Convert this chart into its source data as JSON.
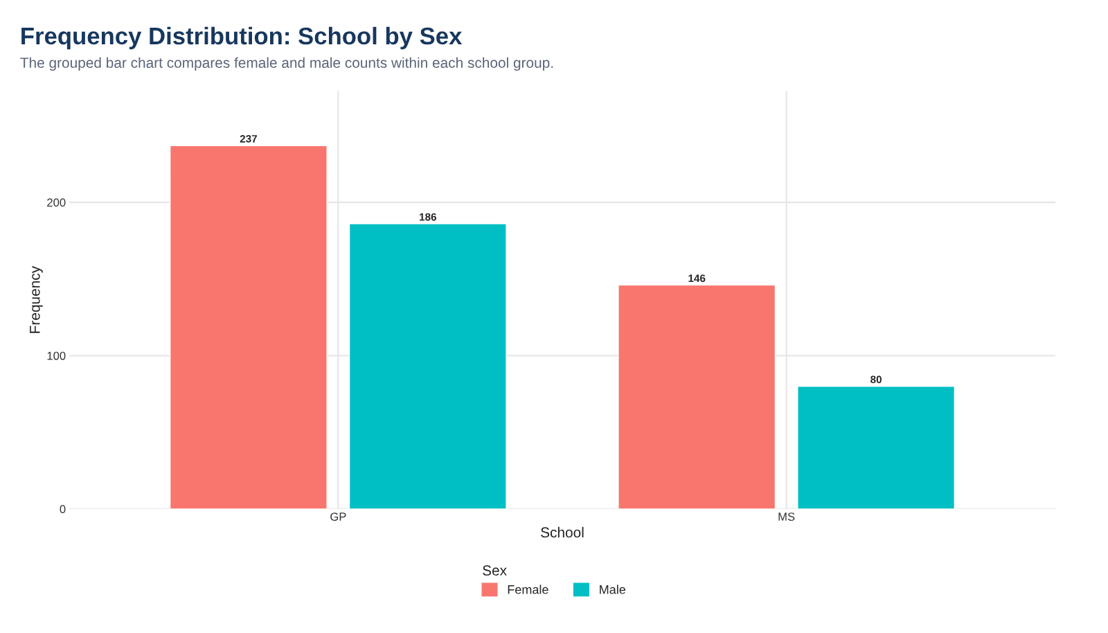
{
  "chart_data": {
    "type": "bar",
    "title": "Frequency Distribution: School by Sex",
    "subtitle": "The grouped bar chart compares female and male counts within each school group.",
    "xlabel": "School",
    "ylabel": "Frequency",
    "legend_title": "Sex",
    "categories": [
      "GP",
      "MS"
    ],
    "series": [
      {
        "name": "Female",
        "color": "#f8766d",
        "values": [
          237,
          146
        ]
      },
      {
        "name": "Male",
        "color": "#00bfc4",
        "values": [
          186,
          80
        ]
      }
    ],
    "ylim": [
      0,
      272.5
    ],
    "yticks": [
      0,
      100,
      200
    ],
    "grid": true,
    "legend": "bottom",
    "data_labels": true
  }
}
